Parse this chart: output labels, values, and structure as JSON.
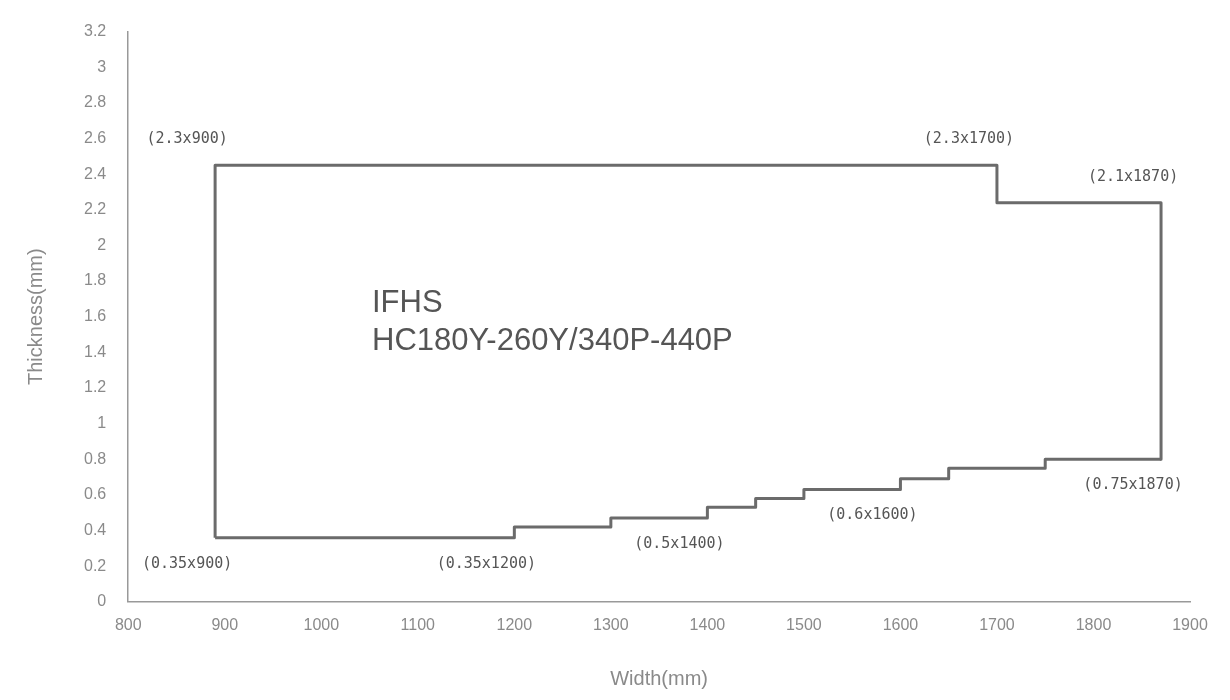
{
  "chart_data": {
    "type": "line",
    "title": "IFHS",
    "subtitle": "HC180Y-260Y/340P-440P",
    "xlabel": "Width(mm)",
    "ylabel": "Thickness(mm)",
    "series": [
      {
        "color": "#6b6b6b",
        "x": [
          890,
          1200,
          1200,
          1300,
          1300,
          1400,
          1400,
          1450,
          1450,
          1500,
          1500,
          1600,
          1600,
          1650,
          1650,
          1750,
          1750,
          1870
        ],
        "values": [
          0.36,
          0.36,
          0.42,
          0.42,
          0.47,
          0.47,
          0.53,
          0.53,
          0.58,
          0.58,
          0.63,
          0.63,
          0.69,
          0.69,
          0.75,
          0.75,
          0.8,
          0.8
        ]
      },
      {
        "color": "#6b6b6b",
        "x": [
          890,
          890,
          1700,
          1700,
          1870,
          1870
        ],
        "values": [
          0.36,
          2.45,
          2.45,
          2.24,
          2.24,
          0.8
        ]
      }
    ],
    "xlim": [
      800,
      1900
    ],
    "xticks": [
      800,
      900,
      1000,
      1100,
      1200,
      1300,
      1400,
      1500,
      1600,
      1700,
      1800,
      1900
    ],
    "ylim": [
      0,
      3.2
    ],
    "yticks": [
      0,
      0.2,
      0.4,
      0.6,
      0.8,
      1,
      1.2,
      1.4,
      1.6,
      1.8,
      2,
      2.2,
      2.4,
      2.6,
      2.8,
      3,
      3.2
    ],
    "annotations": [
      {
        "text": "(2.3x900)",
        "x": 890,
        "y": 2.45
      },
      {
        "text": "(2.3x1700)",
        "x": 1700,
        "y": 2.45
      },
      {
        "text": "(2.1x1870)",
        "x": 1870,
        "y": 2.24
      },
      {
        "text": "(0.35x900)",
        "x": 890,
        "y": 0.36
      },
      {
        "text": "(0.35x1200)",
        "x": 1200,
        "y": 0.36
      },
      {
        "text": "(0.5x1400)",
        "x": 1400,
        "y": 0.47
      },
      {
        "text": "(0.6x1600)",
        "x": 1600,
        "y": 0.63
      },
      {
        "text": "(0.75x1870)",
        "x": 1870,
        "y": 0.8
      }
    ],
    "grid": false,
    "legend": false,
    "marker": "none",
    "line_style": "solid"
  }
}
